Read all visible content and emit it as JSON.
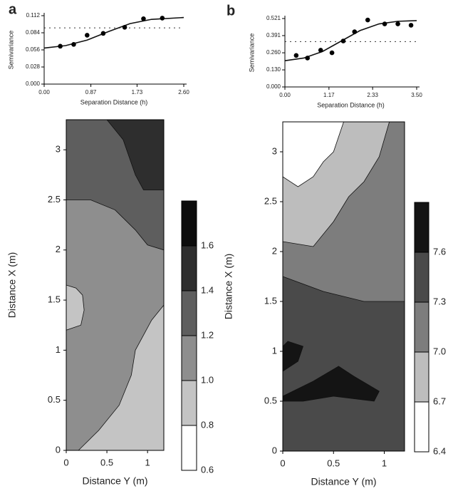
{
  "chart_data": [
    {
      "type": "semivariogram",
      "panel_label": "a",
      "ylabel": "Semivariance",
      "xlabel": "Separation Distance (h)",
      "xlim": [
        0,
        2.6
      ],
      "xticks": [
        {
          "value": 0,
          "label": "0.00"
        },
        0.87,
        1.73,
        {
          "value": 2.6,
          "label": "2.60"
        }
      ],
      "ylim": [
        0,
        0.112
      ],
      "yticks": [
        {
          "value": 0,
          "label": "0.000"
        },
        0.028,
        0.056,
        0.084,
        0.112
      ],
      "points": {
        "x": [
          0.3,
          0.55,
          0.8,
          1.1,
          1.5,
          1.85,
          2.2
        ],
        "values": [
          0.062,
          0.065,
          0.08,
          0.083,
          0.093,
          0.107,
          0.108
        ]
      },
      "model": {
        "x": [
          0,
          0.4,
          0.8,
          1.2,
          1.6,
          2.0,
          2.6
        ],
        "values": [
          0.059,
          0.063,
          0.072,
          0.086,
          0.099,
          0.106,
          0.109
        ]
      },
      "sill": 0.092
    },
    {
      "type": "semivariogram",
      "panel_label": "b",
      "ylabel": "Semivariance",
      "xlabel": "Separation Distance (h)",
      "xlim": [
        0,
        3.5
      ],
      "xticks": [
        {
          "value": 0,
          "label": "0.00"
        },
        1.17,
        2.33,
        {
          "value": 3.5,
          "label": "3.50"
        }
      ],
      "ylim": [
        0,
        0.521
      ],
      "yticks": [
        {
          "value": 0,
          "label": "0.000"
        },
        {
          "value": 0.13,
          "label": "0.130"
        },
        {
          "value": 0.26,
          "label": "0.260"
        },
        0.391,
        0.521
      ],
      "points": {
        "x": [
          0.3,
          0.6,
          0.95,
          1.25,
          1.55,
          1.85,
          2.2,
          2.65,
          3.0,
          3.35
        ],
        "values": [
          0.24,
          0.22,
          0.28,
          0.26,
          0.35,
          0.42,
          0.51,
          0.48,
          0.48,
          0.47
        ]
      },
      "model": {
        "x": [
          0,
          0.5,
          1.0,
          1.5,
          2.0,
          2.5,
          3.0,
          3.5
        ],
        "values": [
          0.2,
          0.22,
          0.27,
          0.35,
          0.43,
          0.48,
          0.5,
          0.505
        ]
      },
      "sill": 0.345
    },
    {
      "type": "contour",
      "xlabel": "Distance Y (m)",
      "ylabel": "Distance X (m)",
      "xlim": [
        0,
        1.2
      ],
      "xticks": [
        0,
        0.5,
        1
      ],
      "ylim": [
        0,
        3.3
      ],
      "yticks": [
        0,
        0.5,
        1,
        1.5,
        2,
        2.5,
        3
      ],
      "clim": [
        0.6,
        1.8
      ],
      "levels": [
        0.6,
        0.8,
        {
          "value": 1.0,
          "label": "1.0"
        },
        1.2,
        1.4,
        1.6
      ],
      "colors": [
        "#ffffff",
        "#c4c4c4",
        "#8e8e8e",
        "#5e5e5e",
        "#2e2e2e",
        "#0c0c0c"
      ]
    },
    {
      "type": "contour",
      "xlabel": "Distance Y (m)",
      "ylabel": "Distance X (m)",
      "xlim": [
        0,
        1.2
      ],
      "xticks": [
        0,
        0.5,
        1
      ],
      "ylim": [
        0,
        3.3
      ],
      "yticks": [
        0,
        0.5,
        1,
        1.5,
        2,
        2.5,
        3
      ],
      "clim": [
        6.4,
        7.9
      ],
      "levels": [
        6.4,
        6.7,
        {
          "value": 7.0,
          "label": "7.0"
        },
        7.3,
        7.6
      ],
      "colors": [
        "#ffffff",
        "#bdbdbd",
        "#7d7d7d",
        "#4a4a4a",
        "#141414"
      ]
    }
  ]
}
